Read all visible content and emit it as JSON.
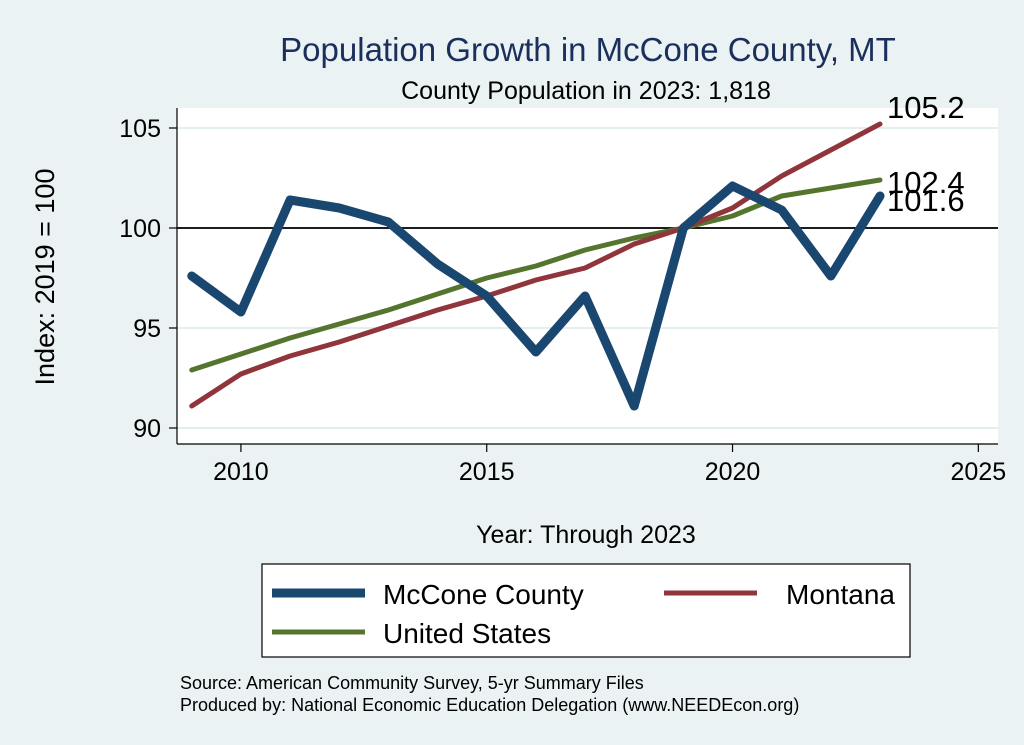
{
  "chart_data": {
    "type": "line",
    "title": "Population Growth in McCone County, MT",
    "subtitle": "County Population in 2023: 1,818",
    "xlabel": "Year: Through 2023",
    "ylabel": "Index: 2019 = 100",
    "xlim": [
      2008.7,
      2025.4
    ],
    "ylim": [
      89.2,
      106.0
    ],
    "xticks": [
      2010,
      2015,
      2020,
      2025
    ],
    "yticks": [
      90,
      95,
      100,
      105
    ],
    "reference_line": 100,
    "x": [
      2009,
      2010,
      2011,
      2012,
      2013,
      2014,
      2015,
      2016,
      2017,
      2018,
      2019,
      2020,
      2021,
      2022,
      2023
    ],
    "series": [
      {
        "name": "McCone  County",
        "color": "#1a476f",
        "values": [
          97.6,
          95.8,
          101.4,
          101.0,
          100.3,
          98.2,
          96.6,
          93.8,
          96.6,
          91.1,
          100.0,
          102.1,
          100.9,
          97.6,
          101.6
        ]
      },
      {
        "name": "Montana",
        "color": "#90353b",
        "values": [
          91.1,
          92.7,
          93.6,
          94.3,
          95.1,
          95.9,
          96.6,
          97.4,
          98.0,
          99.2,
          100.0,
          101.0,
          102.6,
          103.9,
          105.2
        ]
      },
      {
        "name": "United States",
        "color": "#55752f",
        "values": [
          92.9,
          93.7,
          94.5,
          95.2,
          95.9,
          96.7,
          97.5,
          98.1,
          98.9,
          99.5,
          100.0,
          100.6,
          101.6,
          102.0,
          102.4
        ]
      }
    ],
    "end_labels": [
      "105.2",
      "102.4",
      "101.6"
    ],
    "legend_position": "bottom",
    "grid": true
  },
  "notes": {
    "source": "Source: American Community Survey, 5-yr Summary Files",
    "produced_by": "Produced by: National Economic Education Delegation (www.NEEDEcon.org)"
  }
}
